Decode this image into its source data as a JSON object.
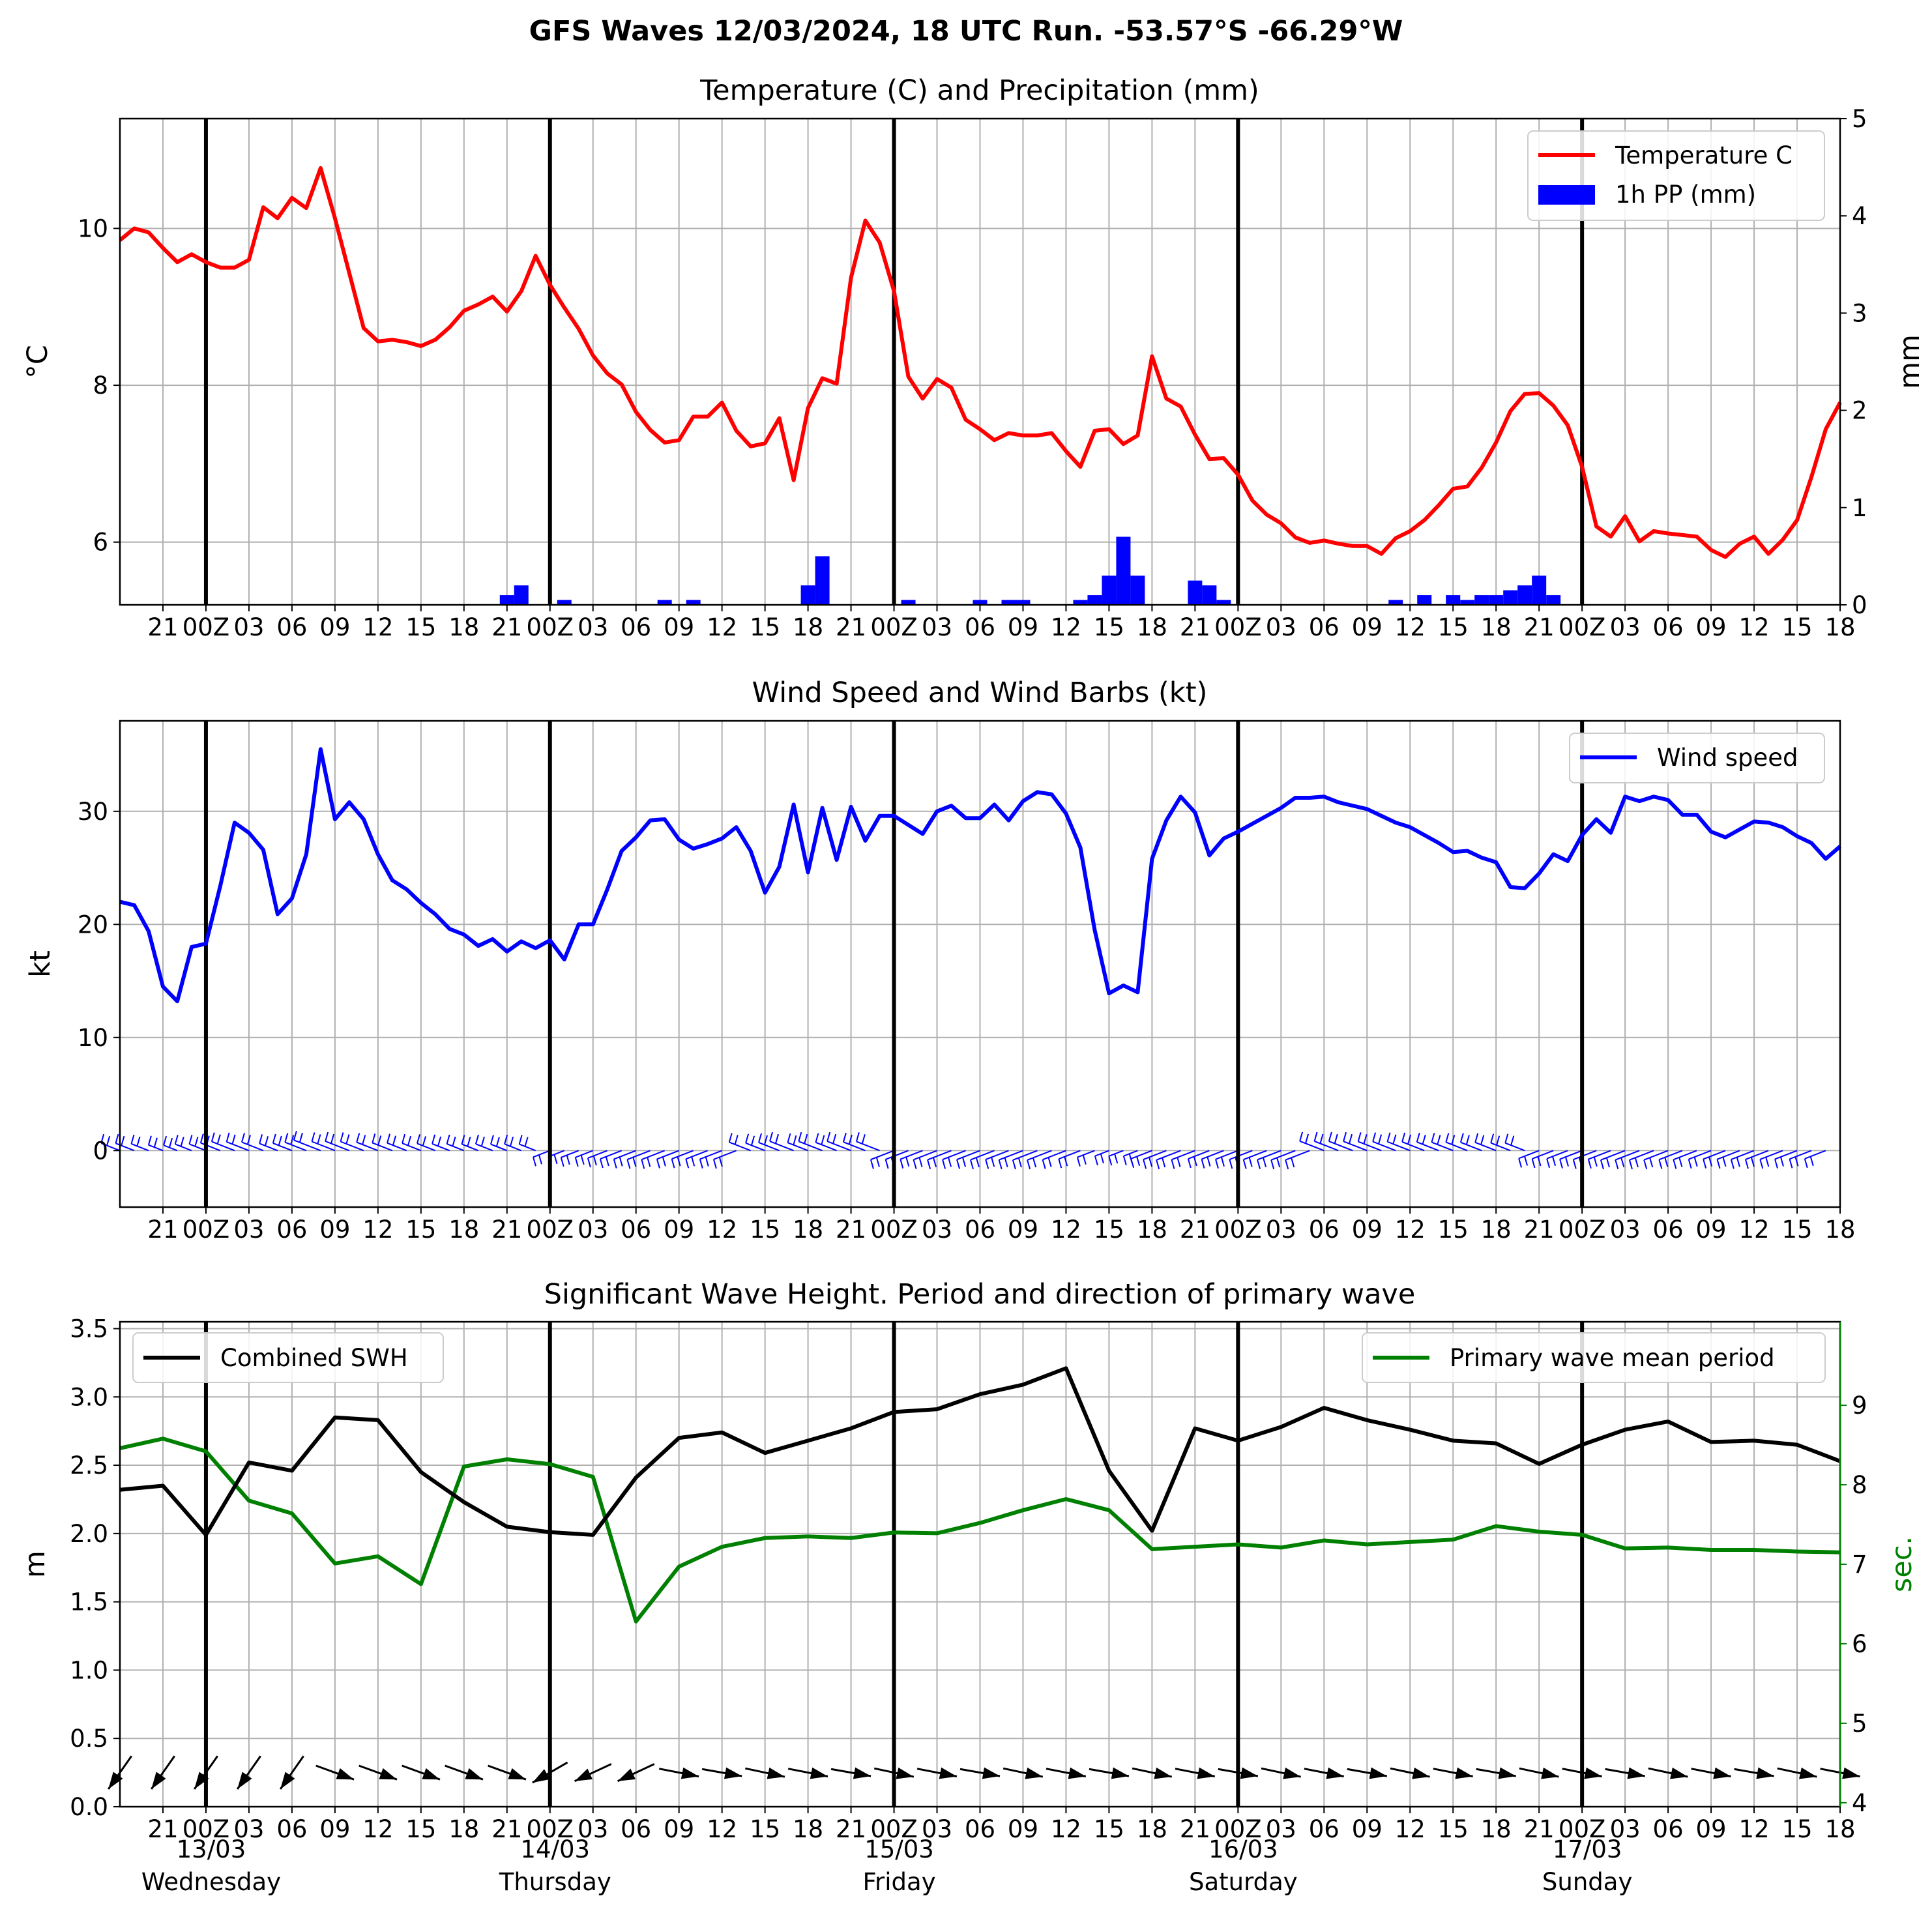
{
  "title": "GFS Waves 12/03/2024, 18 UTC Run. -53.57°S -66.29°W",
  "x_ticks": [
    "21",
    "00Z",
    "03",
    "06",
    "09",
    "12",
    "15",
    "18",
    "21",
    "00Z",
    "03",
    "06",
    "09",
    "12",
    "15",
    "18",
    "21",
    "00Z",
    "03",
    "06",
    "09",
    "12",
    "15",
    "18",
    "21",
    "00Z",
    "03",
    "06",
    "09",
    "12",
    "15",
    "18",
    "21",
    "00Z",
    "03",
    "06",
    "09",
    "12",
    "15",
    "18"
  ],
  "day_labels": [
    {
      "date": "13/03",
      "day": "Wednesday"
    },
    {
      "date": "14/03",
      "day": "Thursday"
    },
    {
      "date": "15/03",
      "day": "Friday"
    },
    {
      "date": "16/03",
      "day": "Saturday"
    },
    {
      "date": "17/03",
      "day": "Sunday"
    }
  ],
  "colors": {
    "temperature": "#ff0000",
    "precip": "#0000ff",
    "wind": "#0000ff",
    "swh": "#000000",
    "period": "#008000",
    "grid": "#b0b0b0"
  },
  "chart_data": [
    {
      "type": "line",
      "title": "Temperature (C) and Precipitation (mm)",
      "xlabel": "",
      "ylabel": "$^\\circ$C",
      "y2label": "mm",
      "x_unit": "hours since 12/03 18 UTC",
      "ylim": [
        5.2,
        11.4
      ],
      "yticks": [
        6,
        8,
        10
      ],
      "y2lim": [
        0,
        5
      ],
      "y2ticks": [
        0,
        1,
        2,
        3,
        4,
        5
      ],
      "legend": [
        "Temperature C",
        "1h PP (mm)"
      ],
      "legend_loc": "upper right",
      "grid": true,
      "series": [
        {
          "name": "Temperature C",
          "step_hours": 1,
          "start_hour": 0,
          "values": [
            9.85,
            10.0,
            9.95,
            9.75,
            9.57,
            9.67,
            9.57,
            9.5,
            9.5,
            9.6,
            10.27,
            10.13,
            10.39,
            10.26,
            10.77,
            10.13,
            9.43,
            8.73,
            8.56,
            8.58,
            8.55,
            8.5,
            8.58,
            8.74,
            8.95,
            9.03,
            9.13,
            8.94,
            9.2,
            9.65,
            9.28,
            8.99,
            8.72,
            8.38,
            8.15,
            8.01,
            7.66,
            7.43,
            7.27,
            7.3,
            7.6,
            7.6,
            7.78,
            7.42,
            7.22,
            7.26,
            7.58,
            6.79,
            7.71,
            8.09,
            8.02,
            9.37,
            10.1,
            9.82,
            9.2,
            8.11,
            7.83,
            8.08,
            7.97,
            7.56,
            7.44,
            7.3,
            7.39,
            7.36,
            7.36,
            7.39,
            7.16,
            6.96,
            7.42,
            7.44,
            7.25,
            7.36,
            8.37,
            7.83,
            7.73,
            7.37,
            7.06,
            7.07,
            6.86,
            6.53,
            6.35,
            6.24,
            6.06,
            5.99,
            6.02,
            5.98,
            5.95,
            5.95,
            5.85,
            6.05,
            6.14,
            6.28,
            6.47,
            6.68,
            6.71,
            6.95,
            7.27,
            7.67,
            7.89,
            7.9,
            7.74,
            7.49,
            6.96,
            6.2,
            6.07,
            6.33,
            6.01,
            6.14,
            6.11,
            6.09,
            6.07,
            5.9,
            5.81,
            5.98,
            6.07,
            5.85,
            6.03,
            6.28,
            6.83,
            7.44,
            7.78
          ]
        },
        {
          "name": "1h PP (mm)",
          "type": "bar",
          "points": [
            [
              27,
              0.1
            ],
            [
              28,
              0.2
            ],
            [
              31,
              0.05
            ],
            [
              38,
              0.05
            ],
            [
              40,
              0.05
            ],
            [
              48,
              0.2
            ],
            [
              49,
              0.5
            ],
            [
              55,
              0.05
            ],
            [
              60,
              0.05
            ],
            [
              62,
              0.05
            ],
            [
              63,
              0.05
            ],
            [
              67,
              0.05
            ],
            [
              68,
              0.1
            ],
            [
              69,
              0.3
            ],
            [
              70,
              0.7
            ],
            [
              71,
              0.3
            ],
            [
              75,
              0.25
            ],
            [
              76,
              0.2
            ],
            [
              77,
              0.05
            ],
            [
              89,
              0.05
            ],
            [
              91,
              0.1
            ],
            [
              93,
              0.1
            ],
            [
              94,
              0.05
            ],
            [
              95,
              0.1
            ],
            [
              96,
              0.1
            ],
            [
              97,
              0.15
            ],
            [
              98,
              0.2
            ],
            [
              99,
              0.3
            ],
            [
              100,
              0.1
            ]
          ]
        }
      ]
    },
    {
      "type": "line",
      "title": "Wind Speed and Wind Barbs (kt)",
      "xlabel": "",
      "ylabel": "kt",
      "ylim": [
        -5,
        38
      ],
      "yticks": [
        0,
        10,
        20,
        30
      ],
      "legend": [
        "Wind speed"
      ],
      "legend_loc": "upper right",
      "grid": true,
      "series": [
        {
          "name": "Wind speed",
          "step_hours": 1,
          "start_hour": 0,
          "values": [
            22.0,
            21.7,
            19.4,
            14.5,
            13.2,
            18.0,
            18.3,
            23.4,
            29.0,
            28.1,
            26.6,
            20.9,
            22.3,
            26.2,
            35.5,
            29.3,
            30.8,
            29.3,
            26.2,
            23.9,
            23.1,
            21.9,
            20.9,
            19.6,
            19.1,
            18.1,
            18.7,
            17.6,
            18.5,
            17.9,
            18.6,
            16.9,
            20.0,
            20.0,
            23.1,
            26.5,
            27.7,
            29.2,
            29.3,
            27.5,
            26.7,
            27.1,
            27.6,
            28.6,
            26.5,
            22.8,
            25.1,
            30.6,
            24.6,
            30.3,
            25.7,
            30.4,
            27.4,
            29.6,
            29.6,
            28.8,
            28.0,
            30.0,
            30.5,
            29.4,
            29.4,
            30.6,
            29.2,
            30.9,
            31.7,
            31.5,
            29.8,
            26.8,
            19.5,
            13.9,
            14.6,
            14.0,
            25.8,
            29.2,
            31.3,
            29.9,
            26.1,
            27.6,
            28.2,
            28.9,
            29.6,
            30.3,
            31.2,
            31.2,
            31.3,
            30.8,
            30.5,
            30.2,
            29.6,
            29.0,
            28.6,
            27.9,
            27.2,
            26.4,
            26.5,
            25.9,
            25.5,
            23.3,
            23.2,
            24.5,
            26.2,
            25.6,
            27.9,
            29.3,
            28.1,
            31.3,
            30.9,
            31.3,
            31.0,
            29.7,
            29.7,
            28.2,
            27.7,
            28.4,
            29.1,
            29.0,
            28.6,
            27.8,
            27.2,
            25.8,
            26.9
          ]
        },
        {
          "name": "Wind barbs",
          "type": "barbs",
          "step_hours": 1,
          "note": "barb rows drawn along y=0"
        }
      ]
    },
    {
      "type": "line",
      "title": "Significant Wave Height. Period and direction of primary wave",
      "xlabel": "",
      "ylabel": "m",
      "y2label": "sec.",
      "ylim": [
        0,
        3.55
      ],
      "yticks": [
        0.0,
        0.5,
        1.0,
        1.5,
        2.0,
        2.5,
        3.0,
        3.5
      ],
      "y2lim": [
        3.95,
        10.05
      ],
      "y2ticks": [
        4,
        5,
        6,
        7,
        8,
        9
      ],
      "legend": [
        "Combined SWH",
        "Primary wave mean period"
      ],
      "grid": true,
      "series": [
        {
          "name": "Combined SWH",
          "step_hours": 3,
          "start_hour": 0,
          "values": [
            2.32,
            2.35,
            1.99,
            2.52,
            2.46,
            2.85,
            2.83,
            2.45,
            2.23,
            2.05,
            2.01,
            1.99,
            2.41,
            2.7,
            2.74,
            2.59,
            2.68,
            2.77,
            2.89,
            2.91,
            3.02,
            3.09,
            3.21,
            2.46,
            2.02,
            2.77,
            2.68,
            2.78,
            2.92,
            2.83,
            2.76,
            2.68,
            2.66,
            2.51,
            2.65,
            2.76,
            2.82,
            2.67,
            2.68,
            2.65,
            2.53
          ]
        },
        {
          "name": "Primary wave mean period",
          "step_hours": 3,
          "start_hour": 0,
          "values": [
            8.46,
            8.58,
            8.42,
            7.8,
            7.64,
            7.01,
            7.1,
            6.75,
            8.23,
            8.32,
            8.26,
            8.1,
            6.28,
            6.97,
            7.22,
            7.33,
            7.35,
            7.33,
            7.4,
            7.39,
            7.52,
            7.68,
            7.82,
            7.68,
            7.19,
            7.22,
            7.25,
            7.21,
            7.3,
            7.25,
            7.28,
            7.31,
            7.48,
            7.41,
            7.37,
            7.2,
            7.21,
            7.18,
            7.18,
            7.16,
            7.15
          ]
        },
        {
          "name": "Primary wave direction",
          "type": "arrows",
          "step_hours": 3,
          "note": "arrows drawn near y=0.25"
        }
      ]
    }
  ]
}
